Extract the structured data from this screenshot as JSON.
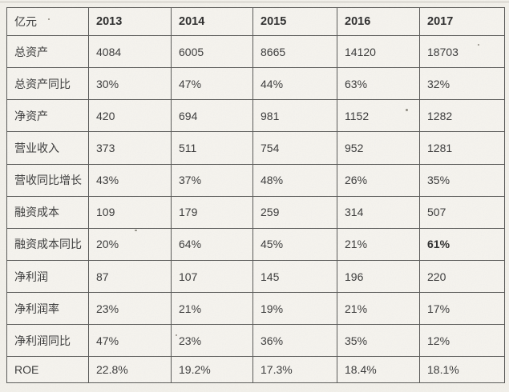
{
  "colors": {
    "page_background": "#f2f0ea",
    "cell_background": "#f5f3ee",
    "grid_line": "#585856",
    "text": "#3a3a3a",
    "header_text": "#2c2c2c"
  },
  "chart_data": {
    "type": "table",
    "unit_header": "亿元",
    "columns": [
      "2013",
      "2014",
      "2015",
      "2016",
      "2017"
    ],
    "rows": [
      {
        "label": "总资产",
        "values": [
          "4084",
          "6005",
          "8665",
          "14120",
          "18703"
        ],
        "bold_cols": []
      },
      {
        "label": "总资产同比",
        "values": [
          "30%",
          "47%",
          "44%",
          "63%",
          "32%"
        ],
        "bold_cols": []
      },
      {
        "label": "净资产",
        "values": [
          "420",
          "694",
          "981",
          "1152",
          "1282"
        ],
        "bold_cols": []
      },
      {
        "label": "营业收入",
        "values": [
          "373",
          "511",
          "754",
          "952",
          "1281"
        ],
        "bold_cols": []
      },
      {
        "label": "营收同比增长",
        "values": [
          "43%",
          "37%",
          "48%",
          "26%",
          "35%"
        ],
        "bold_cols": []
      },
      {
        "label": "融资成本",
        "values": [
          "109",
          "179",
          "259",
          "314",
          "507"
        ],
        "bold_cols": []
      },
      {
        "label": "融资成本同比",
        "values": [
          "20%",
          "64%",
          "45%",
          "21%",
          "61%"
        ],
        "bold_cols": [
          4
        ]
      },
      {
        "label": "净利润",
        "values": [
          "87",
          "107",
          "145",
          "196",
          "220"
        ],
        "bold_cols": []
      },
      {
        "label": "净利润率",
        "values": [
          "23%",
          "21%",
          "19%",
          "21%",
          "17%"
        ],
        "bold_cols": []
      },
      {
        "label": "净利润同比",
        "values": [
          "47%",
          "23%",
          "36%",
          "35%",
          "12%"
        ],
        "bold_cols": []
      },
      {
        "label": "ROE",
        "values": [
          "22.8%",
          "19.2%",
          "17.3%",
          "18.4%",
          "18.1%"
        ],
        "bold_cols": []
      }
    ]
  }
}
